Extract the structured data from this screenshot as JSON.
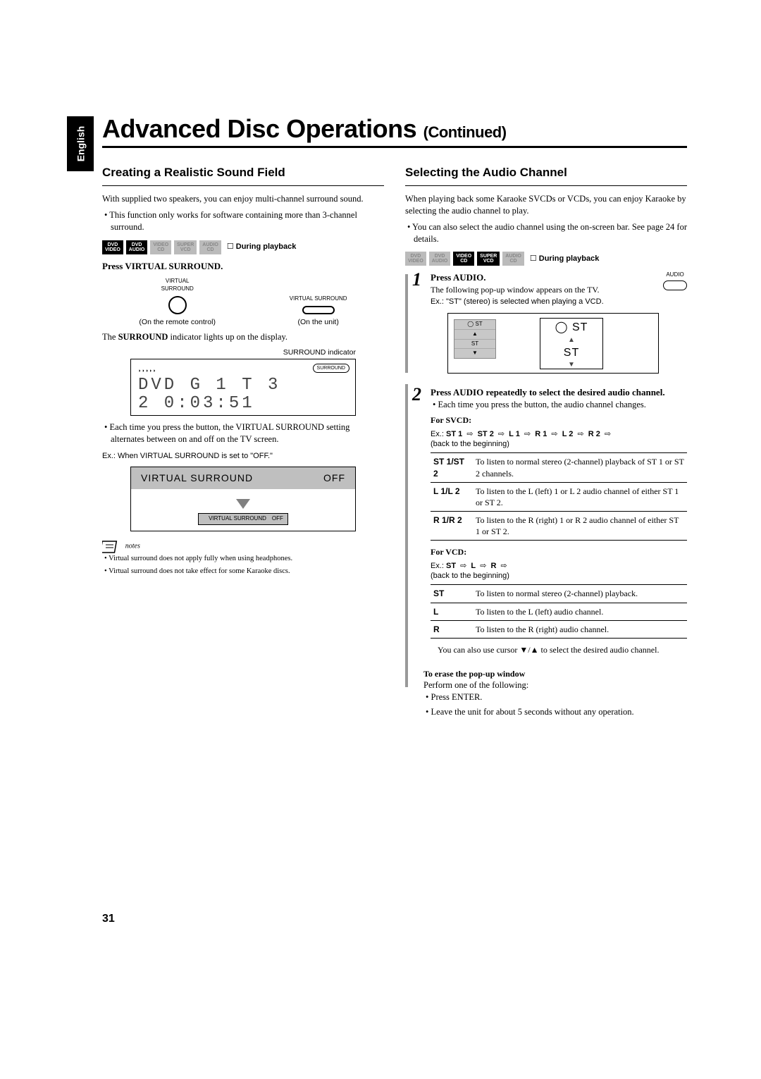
{
  "lang_tab": "English",
  "title_main": "Advanced Disc Operations",
  "title_cont": "(Continued)",
  "page_number": "31",
  "left": {
    "heading": "Creating a Realistic Sound Field",
    "p1": "With supplied two speakers, you can enjoy multi-channel surround sound.",
    "b1": "This function only works for software containing more than 3-channel surround.",
    "badges": [
      {
        "top": "DVD",
        "bot": "VIDEO",
        "style": "dark"
      },
      {
        "top": "DVD",
        "bot": "AUDIO",
        "style": "dark"
      },
      {
        "top": "VIDEO",
        "bot": "CD",
        "style": "grey"
      },
      {
        "top": "SUPER",
        "bot": "VCD",
        "style": "grey"
      },
      {
        "top": "AUDIO",
        "bot": "CD",
        "style": "grey"
      }
    ],
    "playback": "During playback",
    "instr": "Press VIRTUAL SURROUND.",
    "remote_label_top": "VIRTUAL\nSURROUND",
    "unit_label_top": "VIRTUAL SURROUND",
    "remote_cap": "(On the remote control)",
    "unit_cap": "(On the unit)",
    "surround_line_pre": "The ",
    "surround_line_b": "SURROUND",
    "surround_line_post": " indicator lights up on the display.",
    "ind_label": "SURROUND indicator",
    "lcd_dolby": "D V D",
    "lcd_pill": "SURROUND",
    "lcd_line1": "DVD  G  1  T  3",
    "lcd_line2": " 2   0:03:51",
    "b2": "Each time you press the button, the VIRTUAL SURROUND setting alternates between on and off on the TV screen.",
    "ex": "Ex.: When VIRTUAL SURROUND is set to \"OFF.\"",
    "vs_label": "VIRTUAL SURROUND",
    "vs_value": "OFF",
    "vs_inner_label": "VIRTUAL SURROUND",
    "vs_inner_value": "OFF",
    "note1": "Virtual surround does not apply fully when using headphones.",
    "note2": "Virtual surround does not take effect for some Karaoke discs."
  },
  "right": {
    "heading": "Selecting the Audio Channel",
    "p1": "When playing back some Karaoke SVCDs or VCDs, you can enjoy Karaoke by selecting the audio channel to play.",
    "b1": "You can also select the audio channel using the on-screen bar. See page 24 for details.",
    "badges": [
      {
        "top": "DVD",
        "bot": "VIDEO",
        "style": "grey"
      },
      {
        "top": "DVD",
        "bot": "AUDIO",
        "style": "grey"
      },
      {
        "top": "VIDEO",
        "bot": "CD",
        "style": "dark"
      },
      {
        "top": "SUPER",
        "bot": "VCD",
        "style": "dark"
      },
      {
        "top": "AUDIO",
        "bot": "CD",
        "style": "grey"
      }
    ],
    "playback": "During playback",
    "step1_instr": "Press AUDIO.",
    "audio_btn_label": "AUDIO",
    "step1_p": "The following pop-up window appears on the TV.",
    "step1_ex": "Ex.: \"ST\" (stereo) is selected when playing a VCD.",
    "popup_grey": [
      "◯ ST",
      "▲",
      "ST",
      "▼"
    ],
    "popup_st_top": "◯ ST",
    "popup_st_mid": "ST",
    "step2_instr": "Press AUDIO repeatedly to select the desired audio channel.",
    "step2_b1": "Each time you press the button, the audio channel changes.",
    "svcd_head": "For SVCD:",
    "svcd_seq_prefix": "Ex.:",
    "svcd_seq": [
      "ST 1",
      "ST 2",
      "L 1",
      "R 1",
      "L 2",
      "R 2"
    ],
    "svcd_seq_end": "(back to the beginning)",
    "svcd_rows": [
      {
        "k": "ST 1/ST 2",
        "v": "To listen to normal stereo (2-channel) playback of ST 1 or ST 2 channels."
      },
      {
        "k": "L 1/L 2",
        "v": "To listen to the L (left) 1 or L 2 audio channel of either ST 1 or ST 2."
      },
      {
        "k": "R 1/R 2",
        "v": "To listen to the R (right) 1 or R 2 audio channel of either ST 1 or ST 2."
      }
    ],
    "vcd_head": "For VCD:",
    "vcd_seq_prefix": "Ex.:",
    "vcd_seq": [
      "ST",
      "L",
      "R"
    ],
    "vcd_seq_end": "(back to the beginning)",
    "vcd_rows": [
      {
        "k": "ST",
        "v": "To listen to normal stereo (2-channel) playback."
      },
      {
        "k": "L",
        "v": "To listen to the L (left) audio channel."
      },
      {
        "k": "R",
        "v": "To listen to the R (right) audio channel."
      }
    ],
    "cursor_note": "You can also use cursor ▼/▲ to select the desired audio channel.",
    "erase_head": "To erase the pop-up window",
    "erase_p": "Perform one of the following:",
    "erase_b1": "Press ENTER.",
    "erase_b2": "Leave the unit for about 5 seconds without any operation."
  }
}
